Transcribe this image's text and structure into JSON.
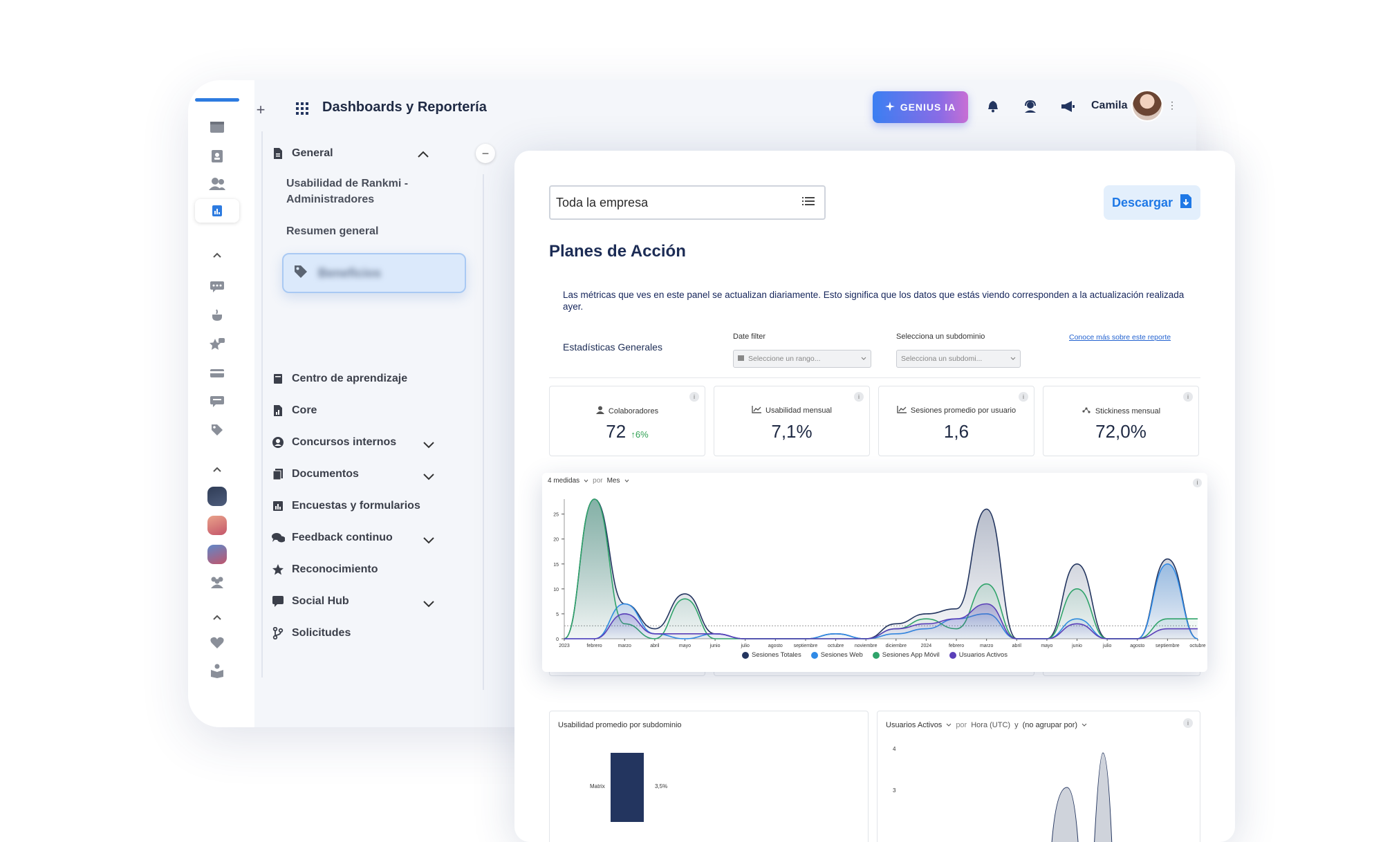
{
  "app": {
    "title": "Dashboards y Reportería",
    "genius_label": "GENIUS IA",
    "user_name": "Camila",
    "plus_label": "+",
    "collapse_label": "−"
  },
  "nav": {
    "general_label": "General",
    "general_children": [
      {
        "label": "Usabilidad de Rankmi - Administradores"
      },
      {
        "label": "Resumen general"
      }
    ],
    "benefits_label": "Beneficios",
    "items": [
      {
        "label": "Centro de aprendizaje",
        "icon": "book-icon"
      },
      {
        "label": "Core",
        "icon": "report-icon"
      },
      {
        "label": "Concursos internos",
        "icon": "user-circle-icon"
      },
      {
        "label": "Documentos",
        "icon": "documents-icon"
      },
      {
        "label": "Encuestas y formularios",
        "icon": "bar-chart-icon"
      },
      {
        "label": "Feedback continuo",
        "icon": "chat-bubbles-icon"
      },
      {
        "label": "Reconocimiento",
        "icon": "star-icon"
      },
      {
        "label": "Social Hub",
        "icon": "comment-icon"
      },
      {
        "label": "Solicitudes",
        "icon": "branch-icon"
      }
    ]
  },
  "panel": {
    "company_value": "Toda la empresa",
    "download_label": "Descargar",
    "heading": "Planes de Acción",
    "info_text": "Las métricas que ves en este panel se actualizan diariamente. Esto significa que los datos que estás viendo corresponden a la actualización realizada ayer.",
    "stats_title": "Estadísticas Generales",
    "date_filter_label": "Date filter",
    "date_filter_placeholder": "Seleccione un rango...",
    "subdomain_label": "Selecciona un subdominio",
    "subdomain_placeholder": "Selecciona un subdomi...",
    "report_link": "Conoce más sobre este reporte",
    "info_glyph": "i"
  },
  "kpis": [
    {
      "label": "Colaboradores",
      "value": "72",
      "delta": "6%",
      "icon": "person-icon"
    },
    {
      "label": "Usabilidad mensual",
      "value": "7,1%",
      "icon": "trend-icon"
    },
    {
      "label": "Sesiones promedio por usuario",
      "value": "1,6",
      "icon": "trend-icon"
    },
    {
      "label": "Stickiness mensual",
      "value": "72,0%",
      "icon": "sparkle-icon"
    }
  ],
  "chart_toolbar": {
    "measures": "4 medidas",
    "by": "por",
    "period": "Mes"
  },
  "chart_data": {
    "type": "area",
    "x": [
      "2023",
      "febrero",
      "marzo",
      "abril",
      "mayo",
      "junio",
      "julio",
      "agosto",
      "septiembre",
      "octubre",
      "noviembre",
      "diciembre",
      "2024",
      "febrero",
      "marzo",
      "abril",
      "mayo",
      "junio",
      "julio",
      "agosto",
      "septiembre",
      "octubre"
    ],
    "yticks": [
      "0",
      "5",
      "10",
      "15",
      "20",
      "25"
    ],
    "ylim": [
      0,
      28
    ],
    "series": [
      {
        "name": "Sesiones Totales",
        "color": "#23355f",
        "values": [
          0,
          28,
          7,
          2,
          9,
          1,
          0,
          0,
          0,
          1,
          0,
          3,
          5,
          6,
          26,
          0,
          0,
          15,
          0,
          0,
          16,
          0
        ]
      },
      {
        "name": "Sesiones Web",
        "color": "#2f8ae6",
        "values": [
          0,
          0,
          7,
          1,
          0,
          1,
          0,
          0,
          0,
          1,
          0,
          1,
          2,
          4,
          5,
          0,
          0,
          4,
          0,
          0,
          15,
          0
        ]
      },
      {
        "name": "Sesiones App Móvil",
        "color": "#2fa36a",
        "values": [
          0,
          28,
          3,
          0,
          8,
          0,
          0,
          0,
          0,
          0,
          0,
          2,
          4,
          2,
          11,
          0,
          0,
          10,
          0,
          0,
          4,
          4
        ]
      },
      {
        "name": "Usuarios Activos",
        "color": "#5a3fb8",
        "values": [
          0,
          0,
          5,
          1,
          1,
          1,
          0,
          0,
          0,
          0,
          0,
          2,
          3,
          4,
          7,
          0,
          0,
          3,
          0,
          0,
          2,
          2
        ]
      }
    ]
  },
  "bottom_cards": {
    "usability_title": "Usabilidad promedio por subdominio",
    "usability_category": "Matrix",
    "usability_value": "3,5%",
    "active_users_title": "Usuarios Activos",
    "active_users_by": "por",
    "active_users_period": "Hora (UTC)",
    "active_users_and": "y",
    "active_users_group": "(no agrupar por)",
    "active_users_yticks": [
      "4",
      "3"
    ]
  }
}
